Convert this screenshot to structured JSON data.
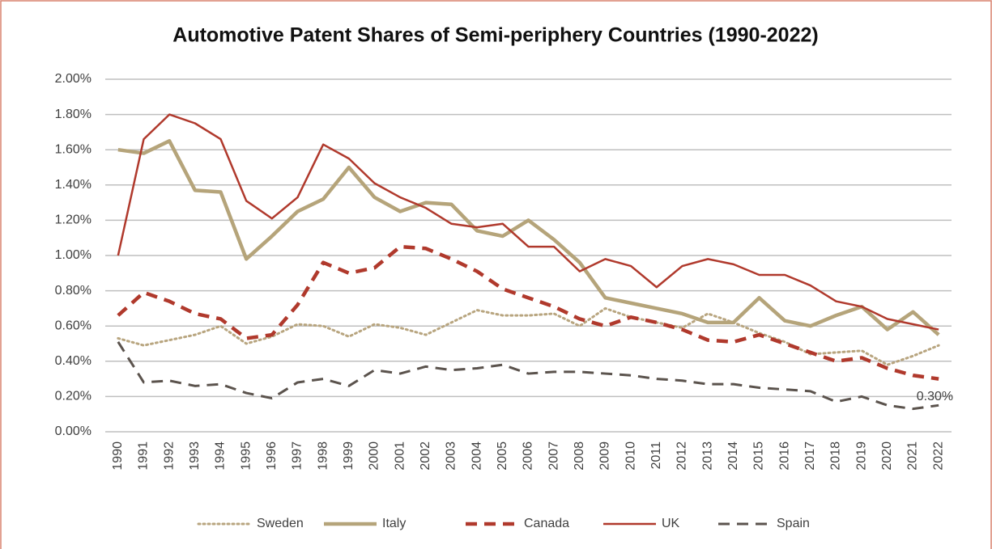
{
  "chart_data": {
    "type": "line",
    "title": "Automotive Patent Shares of Semi-periphery Countries (1990-2022)",
    "categories": [
      "1990",
      "1991",
      "1992",
      "1993",
      "1994",
      "1995",
      "1996",
      "1997",
      "1998",
      "1999",
      "2000",
      "2001",
      "2002",
      "2003",
      "2004",
      "2005",
      "2006",
      "2007",
      "2008",
      "2009",
      "2010",
      "2011",
      "2012",
      "2013",
      "2014",
      "2015",
      "2016",
      "2017",
      "2018",
      "2019",
      "2020",
      "2021",
      "2022"
    ],
    "series": [
      {
        "name": "Sweden",
        "color": "#b8a57f",
        "dash": "dotted",
        "width": 3,
        "values": [
          0.53,
          0.49,
          0.52,
          0.55,
          0.6,
          0.5,
          0.54,
          0.61,
          0.6,
          0.54,
          0.61,
          0.59,
          0.55,
          0.62,
          0.69,
          0.66,
          0.66,
          0.67,
          0.6,
          0.7,
          0.65,
          0.62,
          0.59,
          0.67,
          0.62,
          0.56,
          0.51,
          0.44,
          0.45,
          0.46,
          0.38,
          0.43,
          0.49
        ]
      },
      {
        "name": "Italy",
        "color": "#b5a47a",
        "dash": "solid",
        "width": 4.5,
        "values": [
          1.6,
          1.58,
          1.65,
          1.37,
          1.36,
          0.98,
          1.11,
          1.25,
          1.32,
          1.5,
          1.33,
          1.25,
          1.3,
          1.29,
          1.14,
          1.11,
          1.2,
          1.09,
          0.96,
          0.76,
          0.73,
          0.7,
          0.67,
          0.62,
          0.62,
          0.76,
          0.63,
          0.6,
          0.66,
          0.71,
          0.58,
          0.68,
          0.55
        ]
      },
      {
        "name": "Canada",
        "color": "#b0392c",
        "dash": "dashed",
        "width": 4.5,
        "values": [
          0.66,
          0.79,
          0.74,
          0.67,
          0.64,
          0.53,
          0.55,
          0.72,
          0.96,
          0.9,
          0.93,
          1.05,
          1.04,
          0.98,
          0.91,
          0.81,
          0.76,
          0.71,
          0.64,
          0.6,
          0.65,
          0.62,
          0.58,
          0.52,
          0.51,
          0.55,
          0.5,
          0.45,
          0.4,
          0.42,
          0.36,
          0.32,
          0.3
        ],
        "value_labels": [
          null,
          null,
          null,
          null,
          null,
          null,
          null,
          null,
          null,
          null,
          null,
          null,
          null,
          null,
          null,
          null,
          null,
          null,
          null,
          null,
          null,
          null,
          null,
          null,
          null,
          null,
          null,
          null,
          null,
          null,
          null,
          null,
          "0.30%"
        ]
      },
      {
        "name": "UK",
        "color": "#b0392c",
        "dash": "solid",
        "width": 2.5,
        "values": [
          1.0,
          1.66,
          1.8,
          1.75,
          1.66,
          1.31,
          1.21,
          1.33,
          1.63,
          1.55,
          1.41,
          1.33,
          1.27,
          1.18,
          1.16,
          1.18,
          1.05,
          1.05,
          0.91,
          0.98,
          0.94,
          0.82,
          0.94,
          0.98,
          0.95,
          0.89,
          0.89,
          0.83,
          0.74,
          0.71,
          0.64,
          0.61,
          0.58
        ]
      },
      {
        "name": "Spain",
        "color": "#5b534d",
        "dash": "dashed",
        "width": 3,
        "values": [
          0.51,
          0.28,
          0.29,
          0.26,
          0.27,
          0.22,
          0.19,
          0.28,
          0.3,
          0.26,
          0.35,
          0.33,
          0.37,
          0.35,
          0.36,
          0.38,
          0.33,
          0.34,
          0.34,
          0.33,
          0.32,
          0.3,
          0.29,
          0.27,
          0.27,
          0.25,
          0.24,
          0.23,
          0.17,
          0.2,
          0.15,
          0.13,
          0.15
        ]
      }
    ],
    "ylim": [
      0,
      2
    ],
    "yticks": [
      {
        "value": 0,
        "label": "0.00%"
      },
      {
        "value": 0.2,
        "label": "0.20%"
      },
      {
        "value": 0.4,
        "label": "0.40%"
      },
      {
        "value": 0.6,
        "label": "0.60%"
      },
      {
        "value": 0.8,
        "label": "0.80%"
      },
      {
        "value": 1.0,
        "label": "1.00%"
      },
      {
        "value": 1.2,
        "label": "1.20%"
      },
      {
        "value": 1.4,
        "label": "1.40%"
      },
      {
        "value": 1.6,
        "label": "1.60%"
      },
      {
        "value": 1.8,
        "label": "1.80%"
      },
      {
        "value": 2.0,
        "label": "2.00%"
      }
    ],
    "grid": true,
    "legend": "bottom"
  }
}
